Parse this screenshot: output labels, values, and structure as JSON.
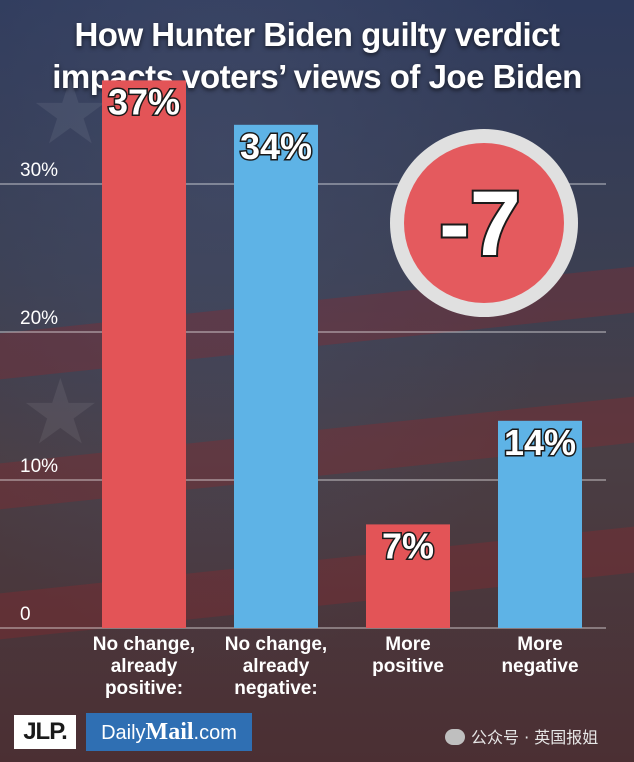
{
  "title_lines": [
    "How Hunter Biden guilty verdict",
    "impacts voters’ views of Joe Biden"
  ],
  "badge": {
    "text": "-7",
    "color": "#e45a5e"
  },
  "logos": {
    "jlp": "JLP.",
    "dailymail_prefix": "Daily",
    "dailymail_mail": "Mail",
    "dailymail_suffix": ".com"
  },
  "watermark": "公众号 · 英国报姐",
  "chart_data": {
    "type": "bar",
    "title": "How Hunter Biden guilty verdict impacts voters’ views of Joe Biden",
    "categories": [
      [
        "No change,",
        "already",
        "positive:"
      ],
      [
        "No change,",
        "already",
        "negative:"
      ],
      [
        "More",
        "positive"
      ],
      [
        "More",
        "negative"
      ]
    ],
    "values": [
      37,
      34,
      7,
      14
    ],
    "value_labels": [
      "37%",
      "34%",
      "7%",
      "14%"
    ],
    "bar_colors": [
      "#e35457",
      "#5eb3e6",
      "#e35457",
      "#5eb3e6"
    ],
    "ylim": [
      0,
      35
    ],
    "yticks": [
      0,
      10,
      20,
      30
    ],
    "ytick_labels": [
      "0",
      "10%",
      "20%",
      "30%"
    ],
    "grid": true,
    "xlabel": "",
    "ylabel": ""
  }
}
